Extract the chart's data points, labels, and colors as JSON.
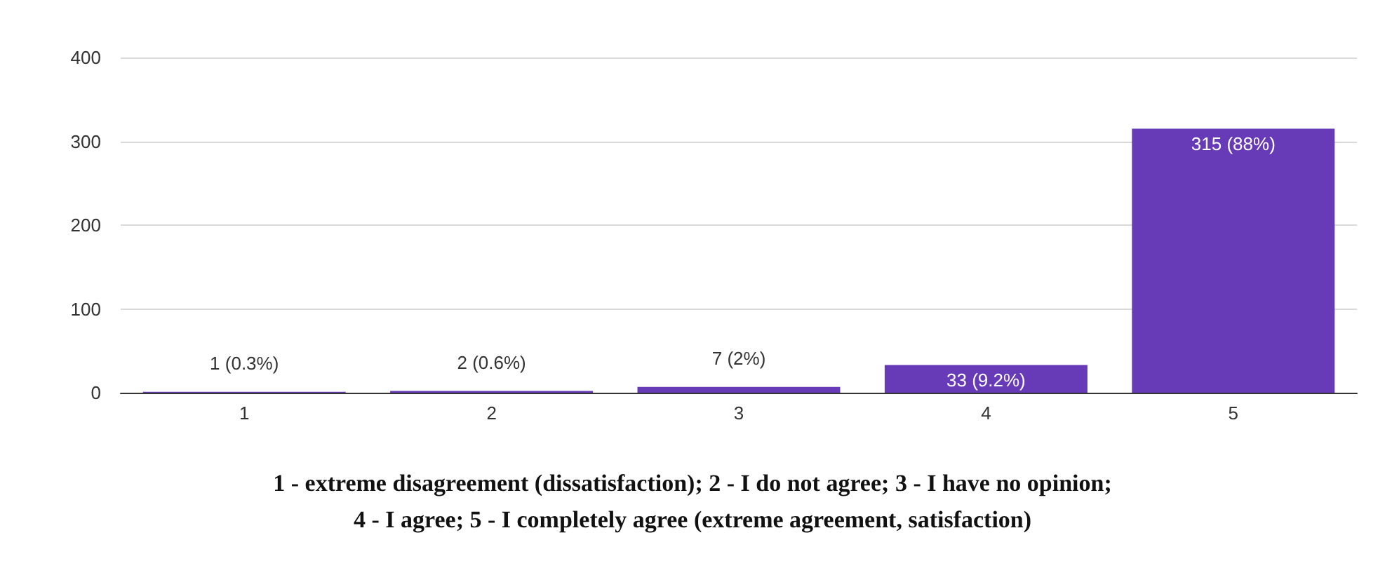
{
  "chart_data": {
    "type": "bar",
    "categories": [
      "1",
      "2",
      "3",
      "4",
      "5"
    ],
    "values": [
      1,
      2,
      7,
      33,
      315
    ],
    "color": "#673ab7",
    "value_labels": [
      "1 (0.3%)",
      "2 (0.6%)",
      "7 (2%)",
      "33 (9.2%)",
      "315 (88%)"
    ],
    "ylim": [
      0,
      400
    ],
    "yticks": [
      0,
      100,
      200,
      300,
      400
    ],
    "grid": "y",
    "annotations": [
      "1 - extreme disagreement (dissatisfaction); 2 - I do not agree; 3 - I have no opinion;",
      "4 - I agree; 5 - I completely agree (extreme agreement, satisfaction)"
    ]
  }
}
